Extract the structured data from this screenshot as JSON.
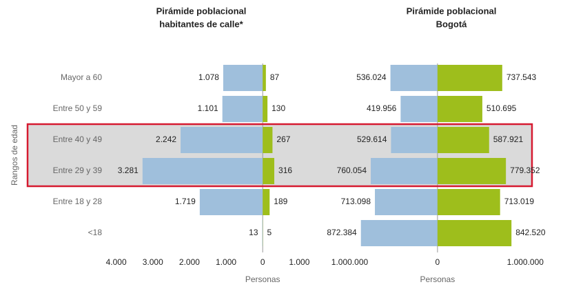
{
  "chart_data": [
    {
      "type": "pyramid",
      "title": [
        "Pirámide poblacional",
        "habitantes de calle*"
      ],
      "ylabel": "Rangos de edad",
      "xlabel": "Personas",
      "categories": [
        "Mayor a 60",
        "Entre 50 y 59",
        "Entre 40 y 49",
        "Entre 29 y 39",
        "Entre 18 y 28",
        "<18"
      ],
      "xlim": [
        -4200,
        1200
      ],
      "xticks": [
        {
          "value": -4000,
          "label": "4.000"
        },
        {
          "value": -3000,
          "label": "3.000"
        },
        {
          "value": -2000,
          "label": "2.000"
        },
        {
          "value": -1000,
          "label": "1.000"
        },
        0,
        {
          "value": 1000,
          "label": "1.000"
        }
      ],
      "series": [
        {
          "side": "left",
          "color": "#9fbfdc",
          "values": [
            1078,
            1101,
            2242,
            3281,
            1719,
            13
          ],
          "value_labels": [
            "1.078",
            "1.101",
            "2.242",
            "3.281",
            "1.719",
            "13"
          ]
        },
        {
          "side": "right",
          "color": "#9ebe1c",
          "values": [
            87,
            130,
            267,
            316,
            189,
            5
          ],
          "value_labels": [
            "87",
            "130",
            "267",
            "316",
            "189",
            "5"
          ]
        }
      ]
    },
    {
      "type": "pyramid",
      "title": [
        "Pirámide poblacional",
        "Bogotá"
      ],
      "xlabel": "Personas",
      "xlim": [
        -1200000,
        1100000
      ],
      "xticks": [
        {
          "value": -1000000,
          "label": "1.000.000"
        },
        0,
        {
          "value": 1000000,
          "label": "1.000.000"
        }
      ],
      "series": [
        {
          "side": "left",
          "color": "#9fbfdc",
          "values": [
            536024,
            419956,
            529614,
            760054,
            713098,
            872384
          ],
          "value_labels": [
            "536.024",
            "419.956",
            "529.614",
            "760.054",
            "713.098",
            "872.384"
          ]
        },
        {
          "side": "right",
          "color": "#9ebe1c",
          "values": [
            737543,
            510695,
            587921,
            779352,
            713019,
            842520
          ],
          "value_labels": [
            "737.543",
            "510.695",
            "587.921",
            "779.352",
            "713.019",
            "842.520"
          ]
        }
      ]
    }
  ]
}
